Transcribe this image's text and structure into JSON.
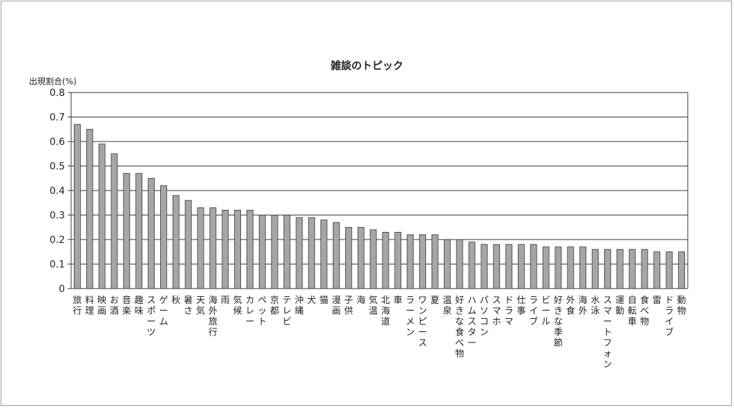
{
  "chart_data": {
    "type": "bar",
    "title": "雑談のトピック",
    "xlabel": "",
    "ylabel": "出現割合(%)",
    "ylim": [
      0,
      0.8
    ],
    "yticks": [
      "0",
      "0.1",
      "0.2",
      "0.3",
      "0.4",
      "0.5",
      "0.6",
      "0.7",
      "0.8"
    ],
    "grid": true,
    "legend": "none",
    "bar_color": "#a6a6a6",
    "categories": [
      "旅行",
      "料理",
      "映画",
      "お酒",
      "音楽",
      "趣味",
      "スポーツ",
      "ゲーム",
      "秋",
      "暑さ",
      "天気",
      "海外旅行",
      "雨",
      "気候",
      "カレー",
      "ペット",
      "京都",
      "テレビ",
      "沖縄",
      "犬",
      "猫",
      "漫画",
      "子供",
      "海",
      "気温",
      "北海道",
      "車",
      "ラーメン",
      "ワンピース",
      "夏",
      "温泉",
      "好きな食べ物",
      "ハムスター",
      "パソコン",
      "スマホ",
      "ドラマ",
      "仕事",
      "ライブ",
      "ビール",
      "好きな季節",
      "外食",
      "海外",
      "水泳",
      "スマートフォン",
      "運動",
      "自転車",
      "食べ物",
      "雷",
      "ドライブ",
      "動物"
    ],
    "values": [
      0.67,
      0.65,
      0.59,
      0.55,
      0.47,
      0.47,
      0.45,
      0.42,
      0.38,
      0.36,
      0.33,
      0.33,
      0.32,
      0.32,
      0.32,
      0.3,
      0.3,
      0.3,
      0.29,
      0.29,
      0.28,
      0.27,
      0.25,
      0.25,
      0.24,
      0.23,
      0.23,
      0.22,
      0.22,
      0.22,
      0.2,
      0.2,
      0.19,
      0.18,
      0.18,
      0.18,
      0.18,
      0.18,
      0.17,
      0.17,
      0.17,
      0.17,
      0.16,
      0.16,
      0.16,
      0.16,
      0.16,
      0.15,
      0.15,
      0.15
    ]
  }
}
